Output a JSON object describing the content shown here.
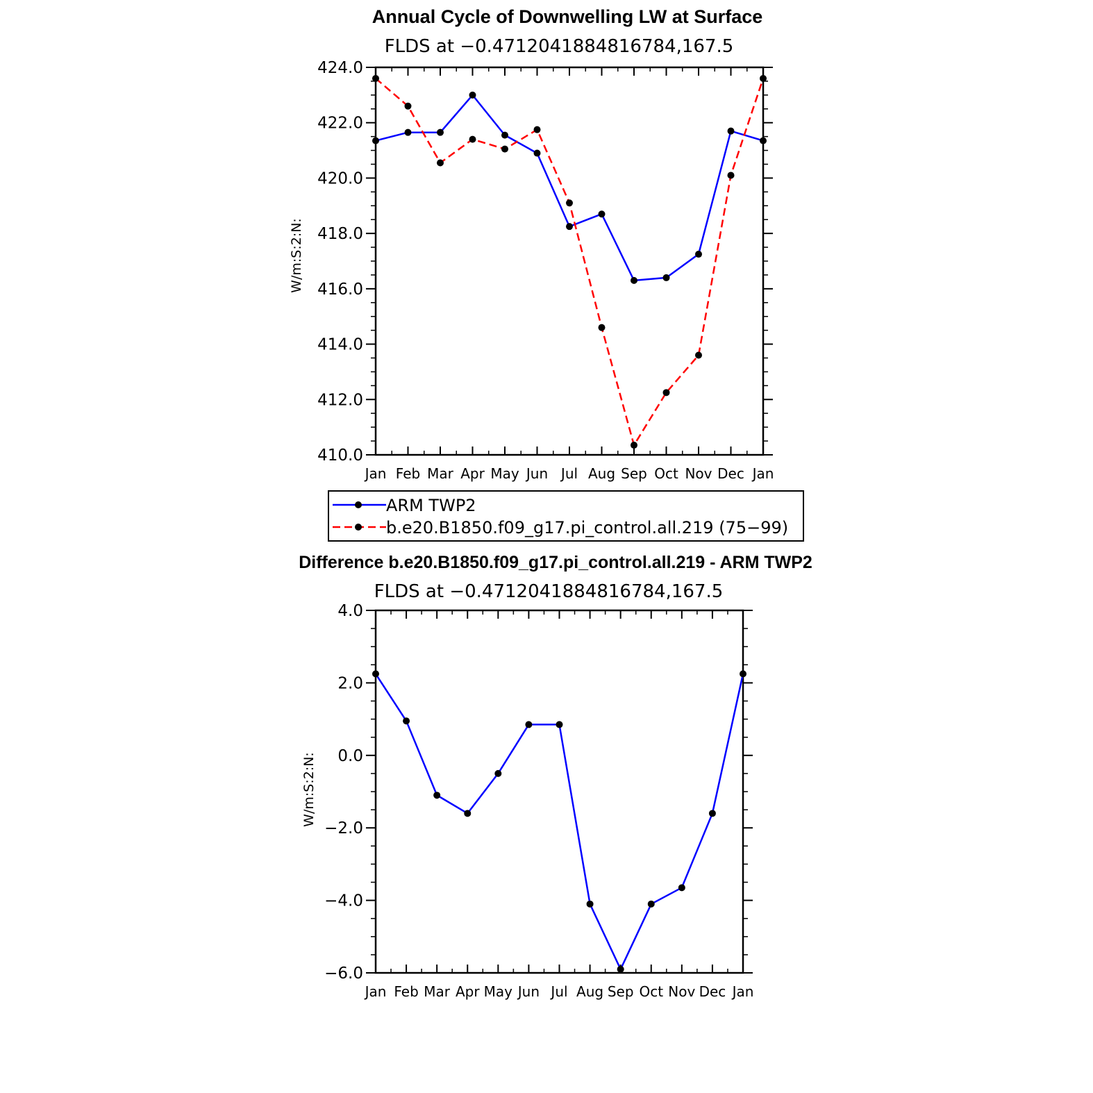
{
  "colors": {
    "obs": "#0000ff",
    "model": "#ff0000",
    "axis": "#000000",
    "marker": "#000000"
  },
  "chart_data": [
    {
      "type": "line",
      "title": "Annual Cycle of Downwelling LW at Surface",
      "subtitle": "FLDS at −0.4712041884816784,167.5",
      "xlabel": "",
      "ylabel": "W/m:S:2:N:",
      "categories": [
        "Jan",
        "Feb",
        "Mar",
        "Apr",
        "May",
        "Jun",
        "Jul",
        "Aug",
        "Sep",
        "Oct",
        "Nov",
        "Dec",
        "Jan"
      ],
      "ylim": [
        410.0,
        424.0
      ],
      "yticks": [
        410.0,
        412.0,
        414.0,
        416.0,
        418.0,
        420.0,
        422.0,
        424.0
      ],
      "ytick_labels": [
        "410.0",
        "412.0",
        "414.0",
        "416.0",
        "418.0",
        "420.0",
        "422.0",
        "424.0"
      ],
      "series": [
        {
          "name": "ARM TWP2",
          "style": "solid",
          "color": "#0000ff",
          "values": [
            421.35,
            421.65,
            421.65,
            423.0,
            421.55,
            420.9,
            418.25,
            418.7,
            416.3,
            416.4,
            417.25,
            421.7,
            421.35
          ]
        },
        {
          "name": "b.e20.B1850.f09_g17.pi_control.all.219 (75−99)",
          "style": "dashed",
          "color": "#ff0000",
          "values": [
            423.6,
            422.6,
            420.55,
            421.4,
            421.05,
            421.75,
            419.1,
            414.6,
            410.35,
            412.25,
            413.6,
            420.1,
            423.6
          ]
        }
      ],
      "legend": [
        "ARM TWP2",
        "b.e20.B1850.f09_g17.pi_control.all.219 (75−99)"
      ],
      "legend_position": "below"
    },
    {
      "type": "line",
      "title": "Difference b.e20.B1850.f09_g17.pi_control.all.219 - ARM TWP2",
      "subtitle": "FLDS at −0.4712041884816784,167.5",
      "xlabel": "",
      "ylabel": "W/m:S:2:N:",
      "categories": [
        "Jan",
        "Feb",
        "Mar",
        "Apr",
        "May",
        "Jun",
        "Jul",
        "Aug",
        "Sep",
        "Oct",
        "Nov",
        "Dec",
        "Jan"
      ],
      "ylim": [
        -6.0,
        4.0
      ],
      "yticks": [
        -6.0,
        -4.0,
        -2.0,
        0.0,
        2.0,
        4.0
      ],
      "ytick_labels": [
        "−6.0",
        "−4.0",
        "−2.0",
        "0.0",
        "2.0",
        "4.0"
      ],
      "series": [
        {
          "name": "Difference",
          "style": "solid",
          "color": "#0000ff",
          "values": [
            2.25,
            0.95,
            -1.1,
            -1.6,
            -0.5,
            0.85,
            0.85,
            -4.1,
            -5.9,
            -4.1,
            -3.65,
            -1.6,
            2.25
          ]
        }
      ]
    }
  ]
}
